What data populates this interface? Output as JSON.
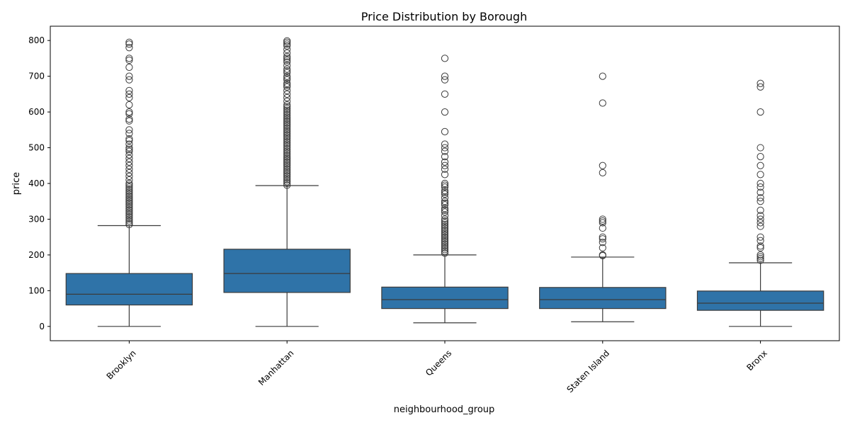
{
  "chart_data": {
    "type": "box",
    "title": "Price Distribution by Borough",
    "xlabel": "neighbourhood_group",
    "ylabel": "price",
    "ylim": [
      -40,
      840
    ],
    "yticks": [
      0,
      100,
      200,
      300,
      400,
      500,
      600,
      700,
      800
    ],
    "grid": false,
    "legend": "none",
    "box_color": "#2f73a8",
    "line_color": "#3b3b3b",
    "categories": [
      "Brooklyn",
      "Manhattan",
      "Queens",
      "Staten Island",
      "Bronx"
    ],
    "boxes": [
      {
        "category": "Brooklyn",
        "whisker_low": 0,
        "q1": 60,
        "median": 90,
        "q3": 148,
        "whisker_high": 282,
        "outliers": [
          285,
          290,
          295,
          300,
          305,
          310,
          315,
          320,
          325,
          330,
          335,
          340,
          345,
          350,
          355,
          360,
          365,
          370,
          375,
          380,
          385,
          390,
          395,
          400,
          410,
          420,
          430,
          440,
          450,
          460,
          470,
          480,
          490,
          495,
          500,
          510,
          520,
          525,
          540,
          550,
          575,
          580,
          595,
          600,
          620,
          640,
          650,
          660,
          690,
          700,
          725,
          745,
          750,
          780,
          790,
          795
        ]
      },
      {
        "category": "Manhattan",
        "whisker_low": 0,
        "q1": 95,
        "median": 148,
        "q3": 216,
        "whisker_high": 394,
        "outliers": [
          395,
          400,
          405,
          410,
          415,
          420,
          425,
          430,
          435,
          440,
          445,
          450,
          455,
          460,
          465,
          470,
          475,
          480,
          485,
          490,
          495,
          500,
          505,
          510,
          515,
          520,
          525,
          530,
          535,
          540,
          545,
          550,
          555,
          560,
          565,
          570,
          575,
          580,
          585,
          590,
          595,
          600,
          605,
          610,
          615,
          620,
          630,
          640,
          650,
          660,
          670,
          675,
          680,
          690,
          695,
          700,
          710,
          715,
          720,
          730,
          740,
          745,
          750,
          755,
          765,
          775,
          785,
          790,
          795,
          799
        ]
      },
      {
        "category": "Queens",
        "whisker_low": 10,
        "q1": 50,
        "median": 75,
        "q3": 110,
        "whisker_high": 200,
        "outliers": [
          205,
          210,
          215,
          220,
          225,
          230,
          235,
          240,
          245,
          250,
          255,
          260,
          265,
          270,
          275,
          280,
          285,
          290,
          295,
          300,
          310,
          320,
          325,
          330,
          340,
          345,
          350,
          360,
          370,
          375,
          380,
          390,
          395,
          400,
          425,
          440,
          450,
          460,
          475,
          490,
          500,
          510,
          545,
          600,
          650,
          690,
          700,
          750
        ]
      },
      {
        "category": "Staten Island",
        "whisker_low": 13,
        "q1": 50,
        "median": 75,
        "q3": 109,
        "whisker_high": 194,
        "outliers": [
          198,
          200,
          220,
          235,
          245,
          250,
          275,
          290,
          295,
          300,
          430,
          450,
          625,
          700
        ]
      },
      {
        "category": "Bronx",
        "whisker_low": 0,
        "q1": 45,
        "median": 65,
        "q3": 99,
        "whisker_high": 178,
        "outliers": [
          185,
          190,
          195,
          200,
          220,
          225,
          240,
          250,
          280,
          290,
          300,
          310,
          325,
          350,
          360,
          375,
          390,
          400,
          425,
          450,
          475,
          500,
          600,
          670,
          680
        ]
      }
    ]
  }
}
